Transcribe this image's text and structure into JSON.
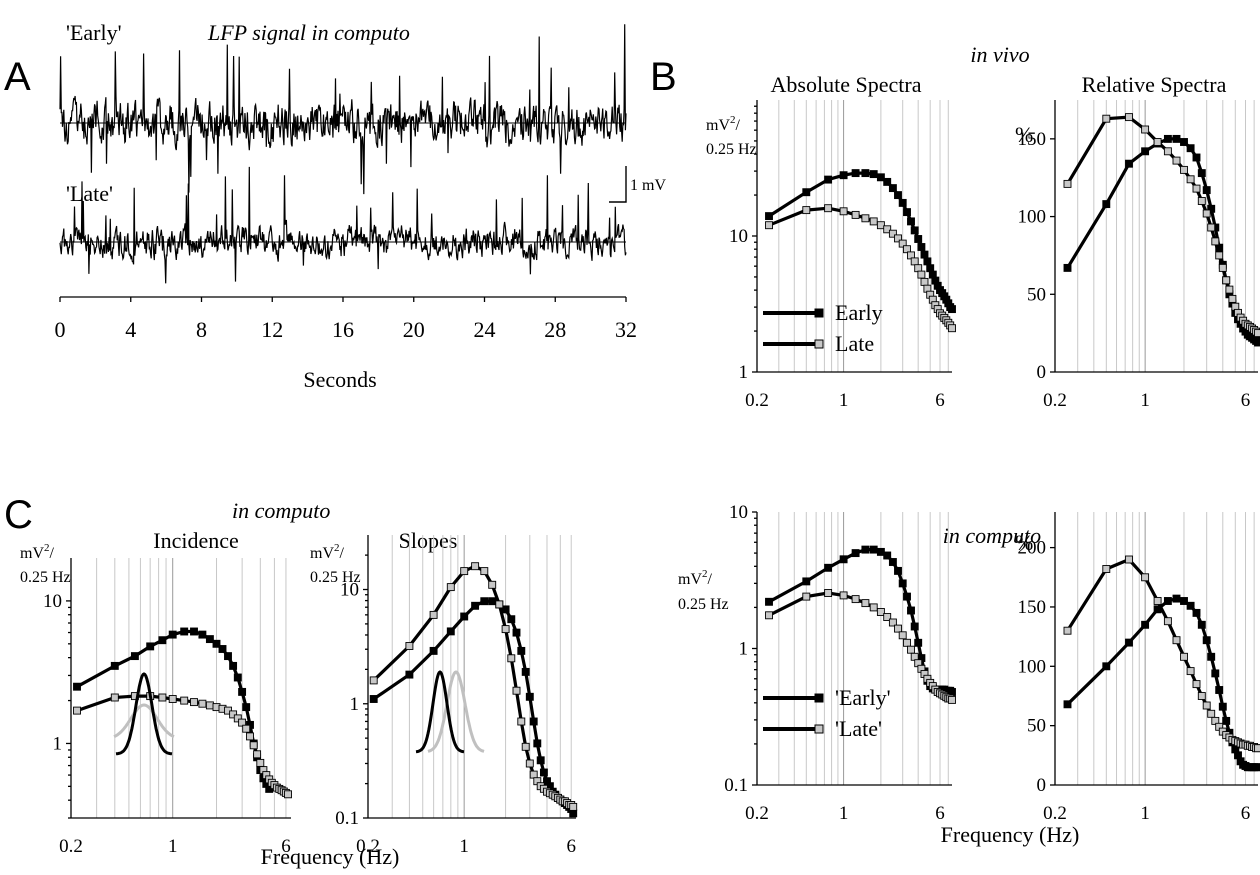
{
  "colors": {
    "early": "#000000",
    "late": "#c0c0c0",
    "late_marker": "#c8c8c8",
    "grid": "#c8c8c8"
  },
  "panels": {
    "A": "A",
    "B": "B",
    "C": "C"
  },
  "panelA": {
    "early_label": "'Early'",
    "title": "LFP signal in computo",
    "late_label": "'Late'",
    "scale_label": "1  mV",
    "xlabel": "Seconds",
    "ticks": [
      "0",
      "4",
      "8",
      "12",
      "16",
      "20",
      "24",
      "28",
      "32"
    ]
  },
  "panelB": {
    "context": "in vivo",
    "abs_title": "Absolute Spectra",
    "rel_title": "Relative Spectra",
    "unit_top": "mV",
    "unit_sup": "2",
    "unit_bottom": "0.25 Hz",
    "pct": "%",
    "legend_early": "Early",
    "legend_late": "Late"
  },
  "panelBottomRight": {
    "context": "in computo",
    "unit_top": "mV",
    "unit_sup": "2",
    "unit_bottom": "0.25 Hz",
    "pct": "%",
    "legend_early": "'Early'",
    "legend_late": "'Late'",
    "xlabel": "Frequency (Hz)"
  },
  "panelC": {
    "context": "in computo",
    "inc_title": "Incidence",
    "slope_title": "Slopes",
    "unit_top": "mV",
    "unit_sup": "2",
    "unit_bottom": "0.25 Hz",
    "xlabel": "Frequency (Hz)"
  },
  "chart_data": [
    {
      "id": "B-absolute",
      "type": "line",
      "title": "Absolute Spectra",
      "xscale": "log",
      "yscale": "log",
      "xlim": [
        0.2,
        7.5
      ],
      "ylim": [
        1,
        100
      ],
      "xticks": [
        {
          "v": 0.2,
          "label": "0.2"
        },
        {
          "v": 1,
          "label": "1"
        },
        {
          "v": 6,
          "label": "6"
        }
      ],
      "yticks": [
        {
          "v": 1,
          "label": "1"
        },
        {
          "v": 10,
          "label": "10"
        }
      ],
      "series": [
        {
          "name": "Early",
          "role": "early",
          "x": [
            0.25,
            0.5,
            0.75,
            1,
            1.25,
            1.5,
            1.75,
            2,
            2.25,
            2.5,
            2.75,
            3,
            3.25,
            3.5,
            3.75,
            4,
            4.25,
            4.5,
            4.75,
            5,
            5.25,
            5.5,
            5.75,
            6,
            6.25,
            6.5,
            6.75,
            7,
            7.25,
            7.5
          ],
          "y": [
            14,
            21,
            26,
            28,
            29,
            29,
            28.5,
            27,
            25,
            22.5,
            20,
            17.5,
            15,
            12.8,
            11,
            9.5,
            8.3,
            7.3,
            6.5,
            5.8,
            5.2,
            4.7,
            4.3,
            4,
            3.8,
            3.6,
            3.4,
            3.2,
            3.0,
            2.9
          ]
        },
        {
          "name": "Late",
          "role": "late",
          "x": [
            0.25,
            0.5,
            0.75,
            1,
            1.25,
            1.5,
            1.75,
            2,
            2.25,
            2.5,
            2.75,
            3,
            3.25,
            3.5,
            3.75,
            4,
            4.25,
            4.5,
            4.75,
            5,
            5.25,
            5.5,
            5.75,
            6,
            6.25,
            6.5,
            6.75,
            7,
            7.25,
            7.5
          ],
          "y": [
            12,
            15.5,
            16,
            15.2,
            14.3,
            13.5,
            12.8,
            12,
            11.2,
            10.4,
            9.6,
            8.8,
            8,
            7.2,
            6.5,
            5.8,
            5.2,
            4.6,
            4.1,
            3.7,
            3.4,
            3.1,
            2.9,
            2.7,
            2.6,
            2.5,
            2.4,
            2.3,
            2.2,
            2.1
          ]
        }
      ]
    },
    {
      "id": "B-relative",
      "type": "line",
      "title": "Relative Spectra",
      "xscale": "log",
      "yscale": "linear",
      "xlim": [
        0.2,
        7.5
      ],
      "ylim": [
        0,
        175
      ],
      "xticks": [
        {
          "v": 0.2,
          "label": "0.2"
        },
        {
          "v": 1,
          "label": "1"
        },
        {
          "v": 6,
          "label": "6"
        }
      ],
      "yticks": [
        {
          "v": 0,
          "label": "0"
        },
        {
          "v": 50,
          "label": "50"
        },
        {
          "v": 100,
          "label": "100"
        },
        {
          "v": 150,
          "label": "150"
        }
      ],
      "series": [
        {
          "name": "Early",
          "role": "early",
          "x": [
            0.25,
            0.5,
            0.75,
            1,
            1.25,
            1.5,
            1.75,
            2,
            2.25,
            2.5,
            2.75,
            3,
            3.25,
            3.5,
            3.75,
            4,
            4.25,
            4.5,
            4.75,
            5,
            5.25,
            5.5,
            5.75,
            6,
            6.25,
            6.5,
            6.75,
            7,
            7.25,
            7.5
          ],
          "y": [
            67,
            108,
            134,
            142,
            147,
            150,
            150,
            148,
            144,
            138,
            128,
            117,
            105,
            93,
            80,
            69,
            59,
            50,
            44,
            38,
            34,
            31,
            28,
            26,
            24,
            23,
            22,
            21,
            20,
            19
          ]
        },
        {
          "name": "Late",
          "role": "late",
          "x": [
            0.25,
            0.5,
            0.75,
            1,
            1.25,
            1.5,
            1.75,
            2,
            2.25,
            2.5,
            2.75,
            3,
            3.25,
            3.5,
            3.75,
            4,
            4.25,
            4.5,
            4.75,
            5,
            5.25,
            5.5,
            5.75,
            6,
            6.25,
            6.5,
            6.75,
            7,
            7.25,
            7.5
          ],
          "y": [
            121,
            163,
            164,
            156,
            148,
            142,
            136,
            130,
            124,
            118,
            110,
            102,
            93,
            84,
            75,
            67,
            59,
            53,
            47,
            42,
            38,
            35,
            33,
            31,
            30,
            29,
            28,
            27,
            26,
            25
          ]
        }
      ]
    },
    {
      "id": "C-incidence",
      "type": "line",
      "title": "Incidence",
      "xscale": "log",
      "yscale": "log",
      "xlim": [
        0.2,
        6.5
      ],
      "ylim": [
        0.3,
        20
      ],
      "xticks": [
        {
          "v": 0.2,
          "label": "0.2"
        },
        {
          "v": 1,
          "label": "1"
        },
        {
          "v": 6,
          "label": "6"
        }
      ],
      "yticks": [
        {
          "v": 1,
          "label": "1"
        },
        {
          "v": 10,
          "label": "10"
        }
      ],
      "series": [
        {
          "name": "'Early'",
          "role": "early",
          "x": [
            0.22,
            0.4,
            0.55,
            0.7,
            0.85,
            1.0,
            1.2,
            1.4,
            1.6,
            1.8,
            2.0,
            2.2,
            2.4,
            2.6,
            2.8,
            3.0,
            3.2,
            3.4,
            3.6,
            3.8,
            4.0,
            4.2,
            4.4,
            4.6
          ],
          "y": [
            2.5,
            3.5,
            4.1,
            4.8,
            5.3,
            5.8,
            6.1,
            6.1,
            5.8,
            5.4,
            5.0,
            4.6,
            4.1,
            3.5,
            2.9,
            2.3,
            1.8,
            1.35,
            1.0,
            0.8,
            0.65,
            0.57,
            0.52,
            0.48
          ]
        },
        {
          "name": "'Late'",
          "role": "late",
          "x": [
            0.22,
            0.4,
            0.55,
            0.7,
            0.85,
            1.0,
            1.2,
            1.4,
            1.6,
            1.8,
            2.0,
            2.2,
            2.4,
            2.6,
            2.8,
            3.0,
            3.2,
            3.4,
            3.6,
            3.8,
            4.0,
            4.2,
            4.4,
            4.6,
            4.8,
            5.0,
            5.2,
            5.4,
            5.6,
            5.8,
            6.0,
            6.2
          ],
          "y": [
            1.7,
            2.1,
            2.15,
            2.15,
            2.1,
            2.05,
            2.0,
            1.95,
            1.9,
            1.85,
            1.8,
            1.75,
            1.7,
            1.6,
            1.5,
            1.4,
            1.27,
            1.12,
            0.97,
            0.84,
            0.73,
            0.65,
            0.6,
            0.56,
            0.53,
            0.51,
            0.49,
            0.48,
            0.47,
            0.46,
            0.45,
            0.44
          ]
        }
      ]
    },
    {
      "id": "C-slopes",
      "type": "line",
      "title": "Slopes",
      "xscale": "log",
      "yscale": "log",
      "xlim": [
        0.2,
        6.5
      ],
      "ylim": [
        0.1,
        30
      ],
      "xticks": [
        {
          "v": 0.2,
          "label": "0.2"
        },
        {
          "v": 1,
          "label": "1"
        },
        {
          "v": 6,
          "label": "6"
        }
      ],
      "yticks": [
        {
          "v": 0.1,
          "label": "0.1"
        },
        {
          "v": 1,
          "label": "1"
        },
        {
          "v": 10,
          "label": "10"
        }
      ],
      "series": [
        {
          "name": "'Early'",
          "role": "early",
          "x": [
            0.22,
            0.4,
            0.6,
            0.8,
            1.0,
            1.2,
            1.4,
            1.6,
            1.8,
            2.0,
            2.2,
            2.4,
            2.6,
            2.8,
            3.0,
            3.2,
            3.4,
            3.6,
            3.8,
            4.0,
            4.2,
            4.4,
            4.6,
            4.8,
            5.0,
            5.2,
            5.4,
            5.6,
            5.8,
            6.0,
            6.2
          ],
          "y": [
            1.1,
            1.8,
            2.9,
            4.3,
            5.8,
            7.2,
            7.9,
            7.9,
            7.4,
            6.7,
            5.5,
            4.2,
            2.9,
            1.9,
            1.15,
            0.7,
            0.45,
            0.32,
            0.25,
            0.21,
            0.19,
            0.17,
            0.16,
            0.15,
            0.145,
            0.14,
            0.135,
            0.13,
            0.125,
            0.12,
            0.11
          ]
        },
        {
          "name": "'Late'",
          "role": "late",
          "x": [
            0.22,
            0.4,
            0.6,
            0.8,
            1.0,
            1.2,
            1.4,
            1.6,
            1.8,
            2.0,
            2.2,
            2.4,
            2.6,
            2.8,
            3.0,
            3.2,
            3.4,
            3.6,
            3.8,
            4.0,
            4.2,
            4.4,
            4.6,
            4.8,
            5.0,
            5.2,
            5.4,
            5.6,
            5.8,
            6.0,
            6.2
          ],
          "y": [
            1.6,
            3.2,
            6.0,
            10.5,
            14.5,
            16.0,
            14.5,
            11.0,
            7.4,
            4.5,
            2.5,
            1.3,
            0.7,
            0.42,
            0.3,
            0.24,
            0.21,
            0.19,
            0.18,
            0.17,
            0.165,
            0.16,
            0.155,
            0.15,
            0.145,
            0.14,
            0.14,
            0.135,
            0.13,
            0.13,
            0.125
          ]
        }
      ]
    },
    {
      "id": "computo-absolute",
      "type": "line",
      "xscale": "log",
      "yscale": "log",
      "xlim": [
        0.2,
        7.5
      ],
      "ylim": [
        0.1,
        10
      ],
      "xticks": [
        {
          "v": 0.2,
          "label": "0.2"
        },
        {
          "v": 1,
          "label": "1"
        },
        {
          "v": 6,
          "label": "6"
        }
      ],
      "yticks": [
        {
          "v": 0.1,
          "label": "0.1"
        },
        {
          "v": 1,
          "label": "1"
        },
        {
          "v": 10,
          "label": "10"
        }
      ],
      "series": [
        {
          "name": "'Early'",
          "role": "early",
          "x": [
            0.25,
            0.5,
            0.75,
            1,
            1.25,
            1.5,
            1.75,
            2,
            2.25,
            2.5,
            2.75,
            3,
            3.25,
            3.5,
            3.75,
            4,
            4.25,
            4.5,
            4.75,
            5,
            5.25,
            5.5,
            5.75,
            6,
            6.25,
            6.5,
            6.75,
            7,
            7.25,
            7.5
          ],
          "y": [
            2.2,
            3.1,
            3.9,
            4.5,
            5.0,
            5.3,
            5.3,
            5.1,
            4.8,
            4.3,
            3.7,
            3.0,
            2.4,
            1.9,
            1.45,
            1.1,
            0.85,
            0.68,
            0.58,
            0.53,
            0.51,
            0.5,
            0.5,
            0.5,
            0.5,
            0.5,
            0.49,
            0.49,
            0.49,
            0.48
          ]
        },
        {
          "name": "'Late'",
          "role": "late",
          "x": [
            0.25,
            0.5,
            0.75,
            1,
            1.25,
            1.5,
            1.75,
            2,
            2.25,
            2.5,
            2.75,
            3,
            3.25,
            3.5,
            3.75,
            4,
            4.25,
            4.5,
            4.75,
            5,
            5.25,
            5.5,
            5.75,
            6,
            6.25,
            6.5,
            6.75,
            7,
            7.25,
            7.5
          ],
          "y": [
            1.75,
            2.4,
            2.55,
            2.45,
            2.3,
            2.15,
            2.0,
            1.85,
            1.7,
            1.55,
            1.4,
            1.25,
            1.1,
            0.98,
            0.87,
            0.78,
            0.71,
            0.65,
            0.6,
            0.56,
            0.53,
            0.5,
            0.48,
            0.47,
            0.46,
            0.45,
            0.44,
            0.43,
            0.43,
            0.42
          ]
        }
      ]
    },
    {
      "id": "computo-relative",
      "type": "line",
      "xscale": "log",
      "yscale": "linear",
      "xlim": [
        0.2,
        7.5
      ],
      "ylim": [
        0,
        230
      ],
      "xticks": [
        {
          "v": 0.2,
          "label": "0.2"
        },
        {
          "v": 1,
          "label": "1"
        },
        {
          "v": 6,
          "label": "6"
        }
      ],
      "yticks": [
        {
          "v": 0,
          "label": "0"
        },
        {
          "v": 50,
          "label": "50"
        },
        {
          "v": 100,
          "label": "100"
        },
        {
          "v": 150,
          "label": "150"
        },
        {
          "v": 200,
          "label": "200"
        }
      ],
      "series": [
        {
          "name": "'Early'",
          "role": "early",
          "x": [
            0.25,
            0.5,
            0.75,
            1,
            1.25,
            1.5,
            1.75,
            2,
            2.25,
            2.5,
            2.75,
            3,
            3.25,
            3.5,
            3.75,
            4,
            4.25,
            4.5,
            4.75,
            5,
            5.25,
            5.5,
            5.75,
            6,
            6.25,
            6.5,
            6.75,
            7,
            7.25,
            7.5
          ],
          "y": [
            68,
            100,
            120,
            135,
            148,
            155,
            157,
            155,
            151,
            145,
            135,
            122,
            108,
            94,
            80,
            66,
            54,
            44,
            36,
            30,
            25,
            20,
            17,
            16,
            15,
            15,
            15,
            15,
            15,
            15
          ]
        },
        {
          "name": "'Late'",
          "role": "late",
          "x": [
            0.25,
            0.5,
            0.75,
            1,
            1.25,
            1.5,
            1.75,
            2,
            2.25,
            2.5,
            2.75,
            3,
            3.25,
            3.5,
            3.75,
            4,
            4.25,
            4.5,
            4.75,
            5,
            5.25,
            5.5,
            5.75,
            6,
            6.25,
            6.5,
            6.75,
            7,
            7.25,
            7.5
          ],
          "y": [
            130,
            182,
            190,
            175,
            155,
            138,
            122,
            108,
            96,
            85,
            75,
            67,
            60,
            54,
            49,
            45,
            42,
            40,
            38,
            37,
            36,
            35,
            34,
            34,
            33,
            33,
            32,
            32,
            31,
            31
          ]
        }
      ]
    }
  ]
}
